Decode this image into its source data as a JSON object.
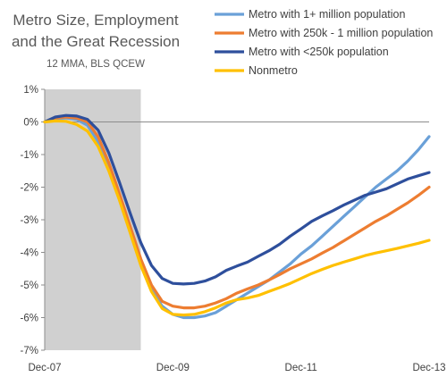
{
  "chart_data": {
    "type": "line",
    "title_lines": [
      "Metro Size, Employment",
      "and the Great Recession"
    ],
    "subtitle": "12 MMA, BLS QCEW",
    "xlabel": "",
    "ylabel": "",
    "x_ticks": [
      "Dec-07",
      "Dec-09",
      "Dec-11",
      "Dec-13"
    ],
    "y_ticks": [
      "1%",
      "0%",
      "-1%",
      "-2%",
      "-3%",
      "-4%",
      "-5%",
      "-6%",
      "-7%"
    ],
    "ylim": [
      -7,
      1
    ],
    "xlim_months": [
      0,
      72
    ],
    "shaded_recession_months": [
      0,
      18
    ],
    "shade_color": "#d0d0d0",
    "legend_placement": "top-right",
    "series": [
      {
        "name": "Metro with 1+ million population",
        "color": "#6aa0d8",
        "x": [
          0,
          2,
          4,
          6,
          8,
          10,
          12,
          14,
          16,
          18,
          20,
          22,
          24,
          26,
          28,
          30,
          32,
          34,
          36,
          38,
          40,
          42,
          44,
          46,
          48,
          50,
          52,
          54,
          56,
          58,
          60,
          62,
          64,
          66,
          68,
          70,
          72
        ],
        "y": [
          0,
          0.1,
          0.12,
          0.08,
          -0.1,
          -0.6,
          -1.4,
          -2.3,
          -3.3,
          -4.3,
          -5.15,
          -5.65,
          -5.9,
          -6.0,
          -6.0,
          -5.95,
          -5.85,
          -5.65,
          -5.45,
          -5.25,
          -5.05,
          -4.85,
          -4.6,
          -4.35,
          -4.05,
          -3.8,
          -3.5,
          -3.2,
          -2.9,
          -2.6,
          -2.3,
          -2.0,
          -1.75,
          -1.5,
          -1.2,
          -0.85,
          -0.45
        ]
      },
      {
        "name": "Metro with 250k - 1 million population",
        "color": "#ed7d31",
        "x": [
          0,
          2,
          4,
          6,
          8,
          10,
          12,
          14,
          16,
          18,
          20,
          22,
          24,
          26,
          28,
          30,
          32,
          34,
          36,
          38,
          40,
          42,
          44,
          46,
          48,
          50,
          52,
          54,
          56,
          58,
          60,
          62,
          64,
          66,
          68,
          70,
          72
        ],
        "y": [
          0,
          0.12,
          0.15,
          0.12,
          0.0,
          -0.45,
          -1.25,
          -2.2,
          -3.2,
          -4.2,
          -5.0,
          -5.5,
          -5.65,
          -5.7,
          -5.7,
          -5.65,
          -5.55,
          -5.42,
          -5.25,
          -5.12,
          -5.0,
          -4.85,
          -4.68,
          -4.5,
          -4.35,
          -4.2,
          -4.02,
          -3.85,
          -3.65,
          -3.45,
          -3.25,
          -3.05,
          -2.88,
          -2.68,
          -2.48,
          -2.25,
          -2.0
        ]
      },
      {
        "name": "Metro with <250k population",
        "color": "#2e4f9c",
        "x": [
          0,
          2,
          4,
          6,
          8,
          10,
          12,
          14,
          16,
          18,
          20,
          22,
          24,
          26,
          28,
          30,
          32,
          34,
          36,
          38,
          40,
          42,
          44,
          46,
          48,
          50,
          52,
          54,
          56,
          58,
          60,
          62,
          64,
          66,
          68,
          70,
          72
        ],
        "y": [
          0,
          0.15,
          0.2,
          0.18,
          0.08,
          -0.25,
          -0.95,
          -1.85,
          -2.8,
          -3.7,
          -4.4,
          -4.8,
          -4.95,
          -4.97,
          -4.95,
          -4.88,
          -4.75,
          -4.55,
          -4.42,
          -4.3,
          -4.12,
          -3.95,
          -3.75,
          -3.5,
          -3.28,
          -3.05,
          -2.88,
          -2.72,
          -2.55,
          -2.4,
          -2.25,
          -2.15,
          -2.05,
          -1.9,
          -1.75,
          -1.65,
          -1.55
        ]
      },
      {
        "name": "Nonmetro",
        "color": "#ffc000",
        "x": [
          0,
          2,
          4,
          6,
          8,
          10,
          12,
          14,
          16,
          18,
          20,
          22,
          24,
          26,
          28,
          30,
          32,
          34,
          36,
          38,
          40,
          42,
          44,
          46,
          48,
          50,
          52,
          54,
          56,
          58,
          60,
          62,
          64,
          66,
          68,
          70,
          72
        ],
        "y": [
          0,
          0.03,
          0.02,
          -0.08,
          -0.28,
          -0.75,
          -1.5,
          -2.4,
          -3.4,
          -4.4,
          -5.2,
          -5.72,
          -5.9,
          -5.92,
          -5.9,
          -5.82,
          -5.7,
          -5.55,
          -5.45,
          -5.4,
          -5.32,
          -5.2,
          -5.08,
          -4.95,
          -4.8,
          -4.65,
          -4.52,
          -4.4,
          -4.3,
          -4.2,
          -4.1,
          -4.02,
          -3.95,
          -3.88,
          -3.8,
          -3.72,
          -3.63
        ]
      }
    ]
  }
}
